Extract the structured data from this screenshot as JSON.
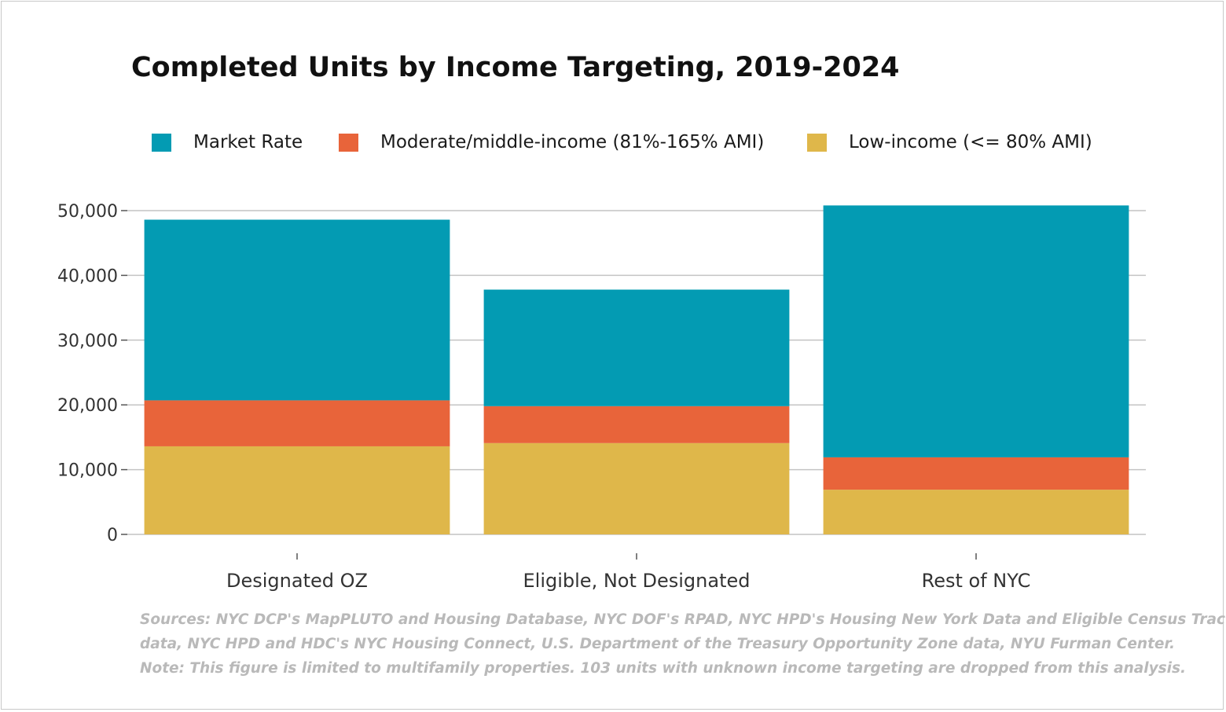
{
  "colors": {
    "market_rate": "#039bb3",
    "moderate": "#e8643a",
    "low_income": "#dfb74a",
    "grid": "#c4c4c4",
    "axis_text": "#333333",
    "footnote": "#b9b9b9"
  },
  "chart_data": {
    "type": "bar",
    "stacked": true,
    "title": "Completed Units by Income Targeting, 2019-2024",
    "xlabel": "",
    "ylabel": "",
    "categories": [
      "Designated OZ",
      "Eligible, Not Designated",
      "Rest of NYC"
    ],
    "series": [
      {
        "name": "Low-income (<= 80% AMI)",
        "color_key": "low_income",
        "values": [
          13600,
          14100,
          6900
        ]
      },
      {
        "name": "Moderate/middle-income (81%-165% AMI)",
        "color_key": "moderate",
        "values": [
          7100,
          5700,
          5000
        ]
      },
      {
        "name": "Market Rate",
        "color_key": "market_rate",
        "values": [
          27900,
          18000,
          38900
        ]
      }
    ],
    "ylim": [
      0,
      50000
    ],
    "yticks": [
      0,
      10000,
      20000,
      30000,
      40000,
      50000
    ],
    "ytick_labels": [
      "0",
      "10,000",
      "20,000",
      "30,000",
      "40,000",
      "50,000"
    ],
    "grid": true,
    "legend_position": "top",
    "legend_order": [
      "Market Rate",
      "Moderate/middle-income (81%-165% AMI)",
      "Low-income (<= 80% AMI)"
    ]
  },
  "footnote": {
    "lines": [
      "Sources: NYC DCP's MapPLUTO and Housing Database, NYC DOF's RPAD, NYC HPD's Housing New York Data and Eligible Census Tract",
      "data, NYC HPD and HDC's NYC Housing Connect, U.S. Department of the Treasury Opportunity Zone data, NYU Furman Center.",
      "Note: This figure is limited to multifamily properties. 103 units with unknown income targeting are dropped from this analysis."
    ]
  }
}
